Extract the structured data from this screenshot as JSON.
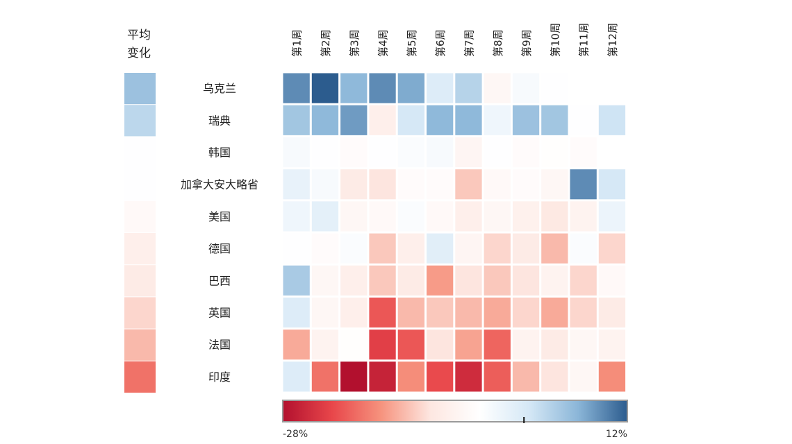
{
  "chart_data": {
    "type": "heatmap",
    "title_line1": "平均",
    "title_line2": "变化",
    "columns": [
      "第1周",
      "第2周",
      "第3周",
      "第4周",
      "第5周",
      "第6周",
      "第7周",
      "第8周",
      "第9周",
      "第10周",
      "第11周",
      "第12周"
    ],
    "rows": [
      "乌克兰",
      "瑞典",
      "韩国",
      "加拿大安大略省",
      "美国",
      "德国",
      "巴西",
      "英国",
      "法国",
      "印度"
    ],
    "average": [
      5,
      2.5,
      -5,
      -5,
      -6.5,
      -9,
      -10,
      -12,
      -14,
      -19
    ],
    "values": [
      [
        9,
        12,
        6,
        9,
        7,
        -0.5,
        3,
        -7,
        -4,
        -5,
        null,
        null
      ],
      [
        4.5,
        6,
        8,
        -9,
        0.5,
        6,
        6,
        -3,
        5,
        4.5,
        -5,
        1
      ],
      [
        -4,
        -5,
        -6,
        -5,
        -4.5,
        -4,
        -7.5,
        -5,
        -6,
        -5.5,
        -6,
        null
      ],
      [
        -2,
        -4,
        -10,
        -11,
        -6,
        -6,
        -13,
        -6.5,
        -6,
        -7,
        9,
        0.5
      ],
      [
        -3,
        -1.5,
        -7,
        -6.5,
        -4.5,
        -6.5,
        -9,
        -7,
        -8.5,
        -10.5,
        -8,
        -2.5
      ],
      [
        -5,
        -6,
        -4.5,
        -13,
        -9,
        -1,
        -7.5,
        -12,
        -10,
        -14,
        -4.5,
        -12
      ],
      [
        4,
        -7,
        -9,
        -13,
        -10,
        -16,
        -11,
        -13,
        -11,
        -8,
        -12,
        -6.5
      ],
      [
        -0.5,
        -7,
        -9,
        -21,
        -14,
        -13,
        -14,
        -15,
        -12,
        -15,
        -12,
        -10
      ],
      [
        -15,
        -8,
        -5.5,
        -23,
        -21,
        -11,
        -15.5,
        -20,
        -8,
        -10,
        -7,
        -8
      ],
      [
        -0.5,
        -19,
        -28,
        -26,
        -17,
        -22,
        -25,
        -20.5,
        -14,
        -11,
        -7,
        -17
      ]
    ],
    "color_scale": {
      "min": -28,
      "max": 12,
      "min_label": "-28%",
      "max_label": "12%",
      "marker_value": 0,
      "stops": [
        "#b2102e",
        "#e8464a",
        "#f6937e",
        "#fde7e1",
        "#ffffff",
        "#d5e8f6",
        "#8bb6d8",
        "#2c5c8e"
      ]
    }
  }
}
